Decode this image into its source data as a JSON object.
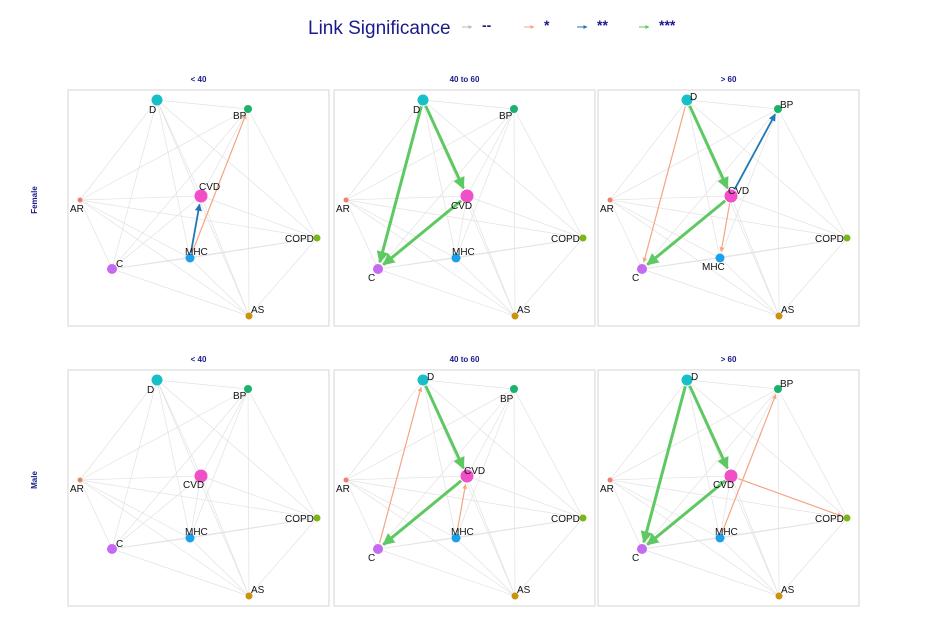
{
  "legend": {
    "title": "Link Significance",
    "items": [
      {
        "label": "--",
        "color": "#bdbdbd"
      },
      {
        "label": "*",
        "color": "#f4a582"
      },
      {
        "label": "**",
        "color": "#1f78b4"
      },
      {
        "label": "***",
        "color": "#5ec962"
      }
    ]
  },
  "rows": [
    {
      "label": "Female"
    },
    {
      "label": "Male"
    }
  ],
  "columns": [
    {
      "title": "< 40"
    },
    {
      "title": "40 to 60"
    },
    {
      "title": "> 60"
    }
  ],
  "nodes": [
    {
      "id": "D",
      "label": "D",
      "color": "#17c0c9"
    },
    {
      "id": "BP",
      "label": "BP",
      "color": "#19b36b"
    },
    {
      "id": "AR",
      "label": "AR",
      "color": "#f07f6a"
    },
    {
      "id": "CVD",
      "label": "CVD",
      "color": "#f04fc8"
    },
    {
      "id": "COPD",
      "label": "COPD",
      "color": "#7ab61a"
    },
    {
      "id": "C",
      "label": "C",
      "color": "#c46bf2"
    },
    {
      "id": "MHC",
      "label": "MHC",
      "color": "#1ba1ec"
    },
    {
      "id": "AS",
      "label": "AS",
      "color": "#c9930e"
    }
  ],
  "significant_links": [
    {
      "row": "Female",
      "column": "< 40",
      "links": [
        {
          "from": "MHC",
          "to": "CVD",
          "level": "**"
        },
        {
          "from": "MHC",
          "to": "BP",
          "level": "*"
        }
      ]
    },
    {
      "row": "Female",
      "column": "40 to 60",
      "links": [
        {
          "from": "D",
          "to": "CVD",
          "level": "***"
        },
        {
          "from": "D",
          "to": "C",
          "level": "***"
        },
        {
          "from": "CVD",
          "to": "C",
          "level": "***"
        }
      ]
    },
    {
      "row": "Female",
      "column": "> 60",
      "links": [
        {
          "from": "D",
          "to": "CVD",
          "level": "***"
        },
        {
          "from": "CVD",
          "to": "C",
          "level": "***"
        },
        {
          "from": "CVD",
          "to": "BP",
          "level": "**"
        },
        {
          "from": "D",
          "to": "C",
          "level": "*"
        },
        {
          "from": "CVD",
          "to": "MHC",
          "level": "*"
        }
      ]
    },
    {
      "row": "Male",
      "column": "< 40",
      "links": []
    },
    {
      "row": "Male",
      "column": "40 to 60",
      "links": [
        {
          "from": "D",
          "to": "CVD",
          "level": "***"
        },
        {
          "from": "CVD",
          "to": "C",
          "level": "***"
        },
        {
          "from": "C",
          "to": "D",
          "level": "*"
        },
        {
          "from": "MHC",
          "to": "CVD",
          "level": "*"
        }
      ]
    },
    {
      "row": "Male",
      "column": "> 60",
      "links": [
        {
          "from": "D",
          "to": "C",
          "level": "***"
        },
        {
          "from": "D",
          "to": "CVD",
          "level": "***"
        },
        {
          "from": "CVD",
          "to": "C",
          "level": "***"
        },
        {
          "from": "MHC",
          "to": "BP",
          "level": "*"
        },
        {
          "from": "CVD",
          "to": "COPD",
          "level": "*"
        }
      ]
    }
  ]
}
